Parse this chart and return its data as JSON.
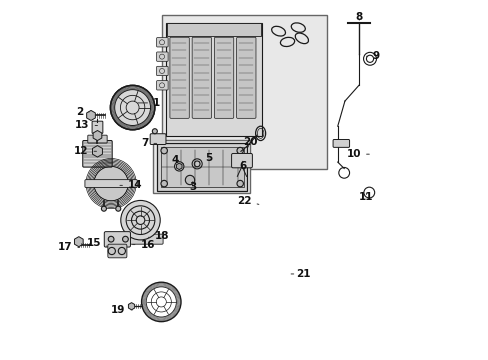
{
  "background_color": "#ffffff",
  "line_color": "#1a1a1a",
  "label_fontsize": 7.5,
  "box_fill": "#e8e8e8",
  "box_edge": "#555555",
  "part_fill": "#ffffff",
  "part_edge": "#1a1a1a",
  "label_positions": {
    "1": [
      0.195,
      0.285,
      0.245,
      0.285
    ],
    "2": [
      0.075,
      0.31,
      0.05,
      0.31
    ],
    "3": [
      0.355,
      0.505,
      0.355,
      0.52
    ],
    "4": [
      0.33,
      0.455,
      0.318,
      0.445
    ],
    "5": [
      0.375,
      0.448,
      0.39,
      0.438
    ],
    "6": [
      0.495,
      0.44,
      0.495,
      0.46
    ],
    "7": [
      0.255,
      0.398,
      0.232,
      0.398
    ],
    "8": [
      0.82,
      0.062,
      0.82,
      0.045
    ],
    "9": [
      0.84,
      0.155,
      0.858,
      0.155
    ],
    "10": [
      0.848,
      0.428,
      0.825,
      0.428
    ],
    "11": [
      0.84,
      0.53,
      0.84,
      0.548
    ],
    "12": [
      0.095,
      0.42,
      0.065,
      0.42
    ],
    "13": [
      0.09,
      0.348,
      0.068,
      0.348
    ],
    "14": [
      0.145,
      0.515,
      0.175,
      0.515
    ],
    "15": [
      0.118,
      0.685,
      0.1,
      0.675
    ],
    "16": [
      0.188,
      0.68,
      0.21,
      0.68
    ],
    "17": [
      0.04,
      0.688,
      0.02,
      0.688
    ],
    "18": [
      0.232,
      0.66,
      0.25,
      0.655
    ],
    "19": [
      0.188,
      0.862,
      0.168,
      0.862
    ],
    "20": [
      0.51,
      0.408,
      0.515,
      0.395
    ],
    "21": [
      0.63,
      0.762,
      0.645,
      0.762
    ],
    "22": [
      0.54,
      0.568,
      0.52,
      0.558
    ]
  }
}
